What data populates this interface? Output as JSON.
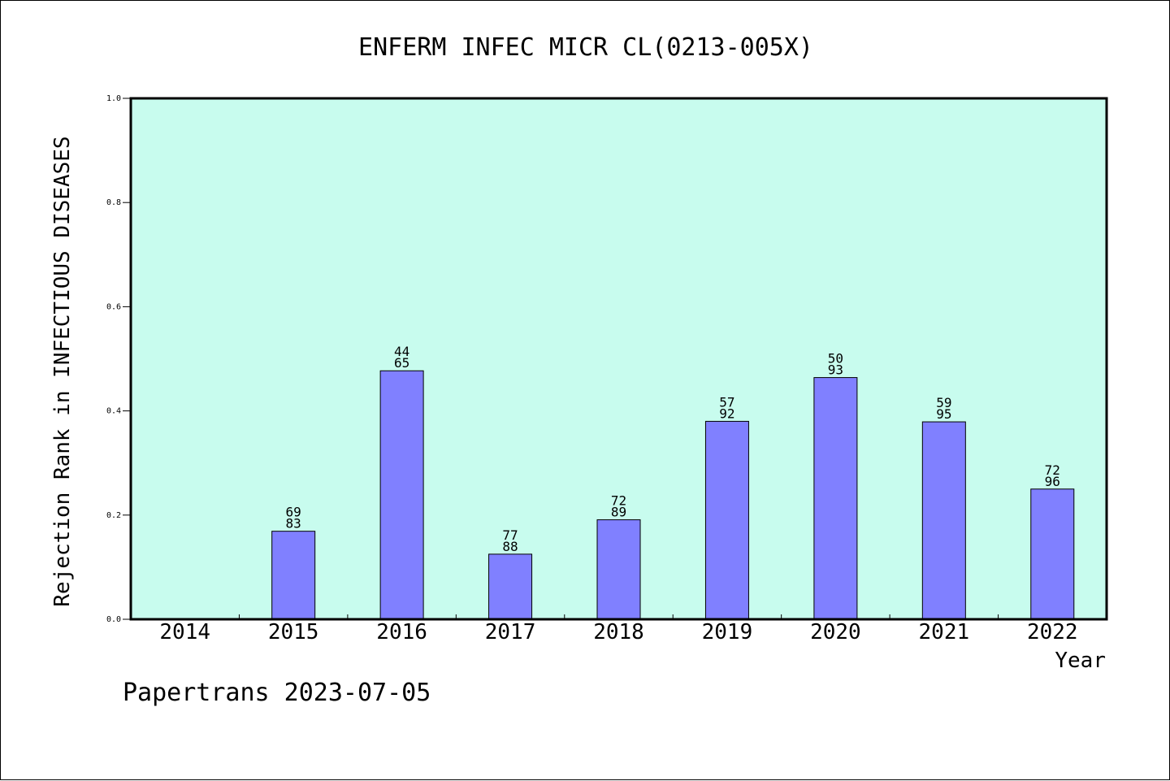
{
  "chart_data": {
    "type": "bar",
    "title": "ENFERM INFEC MICR CL(0213-005X)",
    "xlabel": "Year",
    "ylabel": "Rejection Rank in INFECTIOUS DISEASES",
    "ylim": [
      0,
      1.0
    ],
    "yticks": [
      "0.0",
      "0.2",
      "0.4",
      "0.6",
      "0.8",
      "1.0"
    ],
    "categories": [
      "2014",
      "2015",
      "2016",
      "2017",
      "2018",
      "2019",
      "2020",
      "2021",
      "2022"
    ],
    "values": [
      null,
      0.169,
      0.477,
      0.125,
      0.191,
      0.38,
      0.464,
      0.379,
      0.25
    ],
    "bar_labels": [
      null,
      [
        "69",
        "83"
      ],
      [
        "44",
        "65"
      ],
      [
        "77",
        "88"
      ],
      [
        "72",
        "89"
      ],
      [
        "57",
        "92"
      ],
      [
        "50",
        "93"
      ],
      [
        "59",
        "95"
      ],
      [
        "72",
        "96"
      ]
    ],
    "plot_background": "#c8fcee",
    "bar_color": "#8080ff",
    "grid": false
  },
  "footer": "Papertrans 2023-07-05"
}
